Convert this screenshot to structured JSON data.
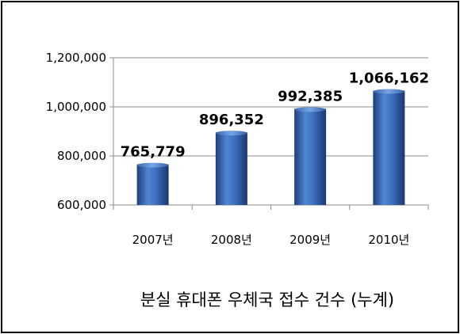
{
  "chart_data": {
    "type": "bar",
    "title": "분실 휴대폰 우체국 접수 건수 (누계)",
    "categories": [
      "2007년",
      "2008년",
      "2009년",
      "2010년"
    ],
    "values": [
      765779,
      896352,
      992385,
      1066162
    ],
    "data_labels": [
      "765,779",
      "896,352",
      "992,385",
      "1,066,162"
    ],
    "y_ticks": [
      600000,
      800000,
      1000000,
      1200000
    ],
    "y_tick_labels": [
      "600,000",
      "800,000",
      "1,000,000",
      "1,200,000"
    ],
    "ylim": [
      600000,
      1200000
    ],
    "grid": true,
    "bar_color": "#2f5ea8"
  }
}
